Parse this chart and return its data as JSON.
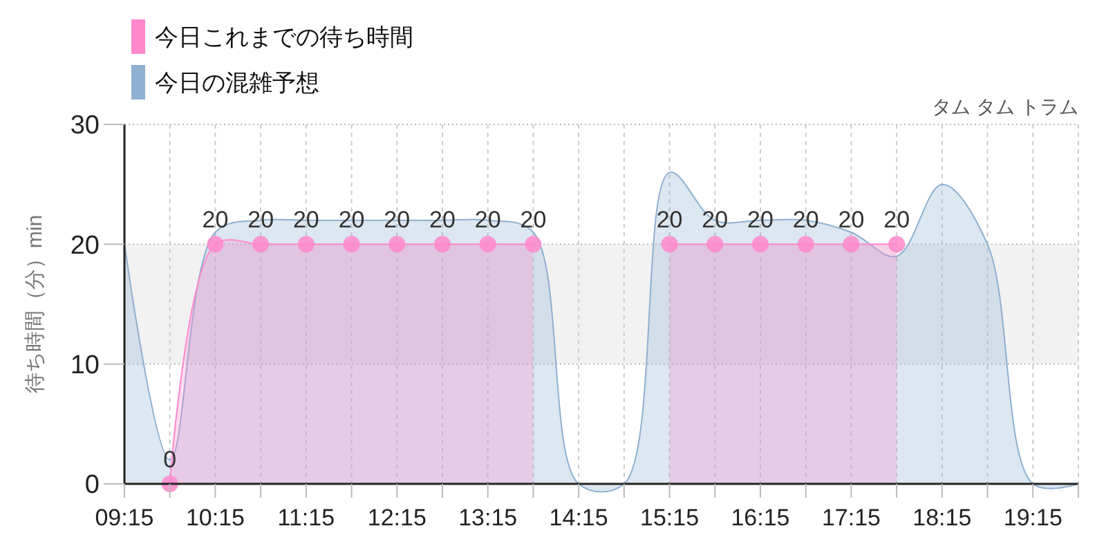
{
  "chart_data": {
    "type": "area",
    "title": "タム タム トラム",
    "ylabel": "待ち時間（分）min",
    "xlim": [
      9.25,
      19.75
    ],
    "xticks": [
      {
        "value": 9.25,
        "label": "09:15"
      },
      {
        "value": 9.75,
        "label": null
      },
      {
        "value": 10.25,
        "label": "10:15"
      },
      {
        "value": 10.75,
        "label": null
      },
      {
        "value": 11.25,
        "label": "11:15"
      },
      {
        "value": 11.75,
        "label": null
      },
      {
        "value": 12.25,
        "label": "12:15"
      },
      {
        "value": 12.75,
        "label": null
      },
      {
        "value": 13.25,
        "label": "13:15"
      },
      {
        "value": 13.75,
        "label": null
      },
      {
        "value": 14.25,
        "label": "14:15"
      },
      {
        "value": 14.75,
        "label": null
      },
      {
        "value": 15.25,
        "label": "15:15"
      },
      {
        "value": 15.75,
        "label": null
      },
      {
        "value": 16.25,
        "label": "16:15"
      },
      {
        "value": 16.75,
        "label": null
      },
      {
        "value": 17.25,
        "label": "17:15"
      },
      {
        "value": 17.75,
        "label": null
      },
      {
        "value": 18.25,
        "label": "18:15"
      },
      {
        "value": 18.75,
        "label": null
      },
      {
        "value": 19.25,
        "label": "19:15"
      },
      {
        "value": 19.75,
        "label": null
      }
    ],
    "ylim": [
      0,
      30
    ],
    "yticks": [
      0,
      10,
      20,
      30
    ],
    "grid": true,
    "legend": "top left",
    "bands": [
      {
        "axis": "y",
        "from": 10,
        "to": 20,
        "color": "#f2f2f2"
      }
    ],
    "series": [
      {
        "name": "今日これまでの待ち時間",
        "color": "#ff88cc",
        "marker": "circle",
        "x": [
          9.75,
          10.25,
          10.75,
          11.25,
          11.75,
          12.25,
          12.75,
          13.25,
          13.75,
          14.25,
          14.75,
          15.25,
          15.75,
          16.25,
          16.75,
          17.25,
          17.75
        ],
        "values": [
          0,
          20,
          20,
          20,
          20,
          20,
          20,
          20,
          20,
          null,
          null,
          20,
          20,
          20,
          20,
          20,
          20
        ],
        "value_labels": [
          "0",
          "20",
          "20",
          "20",
          "20",
          "20",
          "20",
          "20",
          "20",
          null,
          null,
          "20",
          "20",
          "20",
          "20",
          "20",
          "20"
        ]
      },
      {
        "name": "今日の混雑予想",
        "color": "#8fb0d0",
        "marker": "none",
        "x": [
          9.25,
          9.75,
          10.25,
          10.75,
          11.25,
          11.75,
          12.25,
          12.75,
          13.25,
          13.75,
          14.25,
          14.75,
          15.25,
          15.75,
          16.25,
          16.75,
          17.25,
          17.75,
          18.25,
          18.75,
          19.25,
          19.75
        ],
        "values": [
          20,
          2,
          21,
          22,
          22,
          22,
          22,
          22,
          22,
          21,
          0,
          0,
          26,
          22,
          22,
          22,
          21,
          19,
          25,
          20,
          0,
          0
        ]
      }
    ]
  }
}
